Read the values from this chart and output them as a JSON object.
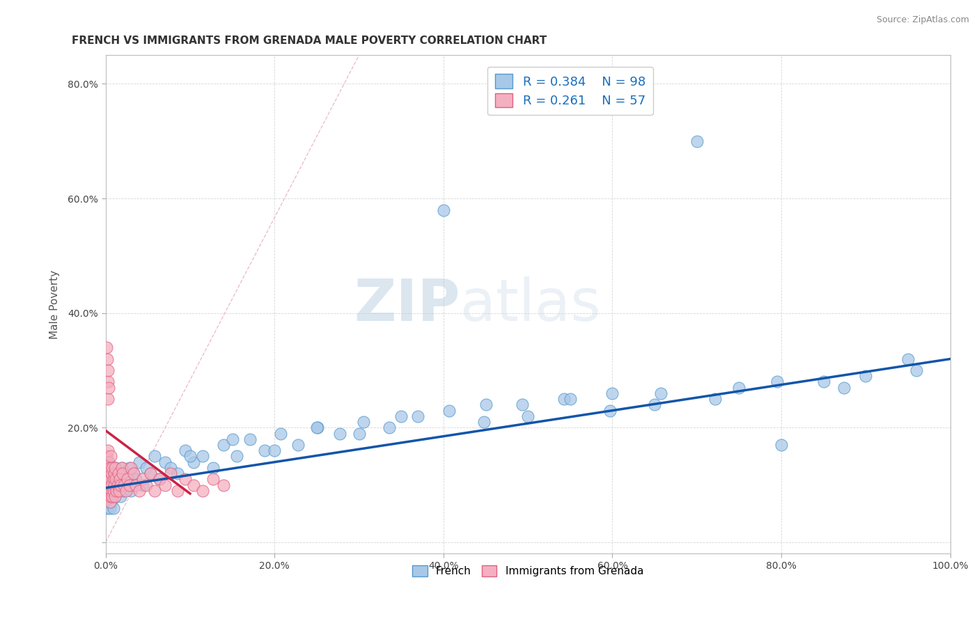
{
  "title": "FRENCH VS IMMIGRANTS FROM GRENADA MALE POVERTY CORRELATION CHART",
  "source": "Source: ZipAtlas.com",
  "ylabel": "Male Poverty",
  "xlim": [
    0,
    1.0
  ],
  "ylim": [
    -0.02,
    0.85
  ],
  "xticks": [
    0.0,
    0.2,
    0.4,
    0.6,
    0.8,
    1.0
  ],
  "xtick_labels": [
    "0.0%",
    "20.0%",
    "40.0%",
    "60.0%",
    "80.0%",
    "100.0%"
  ],
  "yticks": [
    0.0,
    0.2,
    0.4,
    0.6,
    0.8
  ],
  "ytick_labels": [
    "",
    "20.0%",
    "40.0%",
    "60.0%",
    "80.0%"
  ],
  "french_color": "#a8c8e8",
  "grenada_color": "#f4afc0",
  "french_edge": "#5599cc",
  "grenada_edge": "#e06080",
  "regression_french_color": "#1155aa",
  "regression_grenada_color": "#cc2244",
  "diagonal_color": "#e8b0b8",
  "legend_french_r": "R = 0.384",
  "legend_french_n": "N = 98",
  "legend_grenada_r": "R = 0.261",
  "legend_grenada_n": "N = 57",
  "watermark_zip": "ZIP",
  "watermark_atlas": "atlas",
  "title_fontsize": 11,
  "axis_label_fontsize": 11,
  "tick_fontsize": 10,
  "legend_fontsize": 13,
  "french_x": [
    0.001,
    0.001,
    0.002,
    0.002,
    0.003,
    0.003,
    0.003,
    0.004,
    0.004,
    0.004,
    0.005,
    0.005,
    0.005,
    0.006,
    0.006,
    0.006,
    0.007,
    0.007,
    0.007,
    0.008,
    0.008,
    0.008,
    0.009,
    0.009,
    0.009,
    0.01,
    0.01,
    0.011,
    0.011,
    0.012,
    0.012,
    0.013,
    0.014,
    0.015,
    0.016,
    0.017,
    0.018,
    0.019,
    0.02,
    0.022,
    0.024,
    0.026,
    0.028,
    0.03,
    0.033,
    0.036,
    0.04,
    0.044,
    0.048,
    0.053,
    0.058,
    0.064,
    0.07,
    0.077,
    0.085,
    0.094,
    0.104,
    0.115,
    0.127,
    0.14,
    0.155,
    0.171,
    0.188,
    0.207,
    0.228,
    0.251,
    0.277,
    0.305,
    0.336,
    0.37,
    0.407,
    0.448,
    0.493,
    0.543,
    0.597,
    0.657,
    0.722,
    0.795,
    0.874,
    0.96,
    0.1,
    0.15,
    0.2,
    0.25,
    0.3,
    0.35,
    0.4,
    0.45,
    0.5,
    0.55,
    0.6,
    0.65,
    0.7,
    0.75,
    0.8,
    0.85,
    0.9,
    0.95
  ],
  "french_y": [
    0.08,
    0.12,
    0.1,
    0.06,
    0.09,
    0.13,
    0.07,
    0.11,
    0.08,
    0.14,
    0.09,
    0.12,
    0.06,
    0.1,
    0.08,
    0.13,
    0.07,
    0.11,
    0.09,
    0.1,
    0.12,
    0.08,
    0.09,
    0.13,
    0.06,
    0.1,
    0.12,
    0.08,
    0.11,
    0.09,
    0.13,
    0.1,
    0.12,
    0.09,
    0.11,
    0.1,
    0.08,
    0.13,
    0.12,
    0.09,
    0.11,
    0.1,
    0.13,
    0.09,
    0.12,
    0.11,
    0.14,
    0.1,
    0.13,
    0.12,
    0.15,
    0.11,
    0.14,
    0.13,
    0.12,
    0.16,
    0.14,
    0.15,
    0.13,
    0.17,
    0.15,
    0.18,
    0.16,
    0.19,
    0.17,
    0.2,
    0.19,
    0.21,
    0.2,
    0.22,
    0.23,
    0.21,
    0.24,
    0.25,
    0.23,
    0.26,
    0.25,
    0.28,
    0.27,
    0.3,
    0.15,
    0.18,
    0.16,
    0.2,
    0.19,
    0.22,
    0.58,
    0.24,
    0.22,
    0.25,
    0.26,
    0.24,
    0.7,
    0.27,
    0.17,
    0.28,
    0.29,
    0.32
  ],
  "grenada_x": [
    0.001,
    0.001,
    0.002,
    0.002,
    0.003,
    0.003,
    0.003,
    0.004,
    0.004,
    0.004,
    0.005,
    0.005,
    0.005,
    0.006,
    0.006,
    0.006,
    0.007,
    0.007,
    0.007,
    0.008,
    0.008,
    0.009,
    0.009,
    0.01,
    0.01,
    0.011,
    0.011,
    0.012,
    0.013,
    0.014,
    0.015,
    0.016,
    0.017,
    0.018,
    0.019,
    0.02,
    0.022,
    0.024,
    0.026,
    0.028,
    0.03,
    0.033,
    0.036,
    0.04,
    0.044,
    0.048,
    0.053,
    0.058,
    0.064,
    0.07,
    0.077,
    0.085,
    0.094,
    0.104,
    0.115,
    0.127,
    0.14
  ],
  "grenada_y": [
    0.12,
    0.15,
    0.1,
    0.13,
    0.08,
    0.16,
    0.11,
    0.09,
    0.14,
    0.12,
    0.07,
    0.1,
    0.13,
    0.08,
    0.11,
    0.15,
    0.09,
    0.12,
    0.1,
    0.13,
    0.08,
    0.11,
    0.09,
    0.12,
    0.1,
    0.13,
    0.08,
    0.11,
    0.09,
    0.1,
    0.12,
    0.09,
    0.11,
    0.1,
    0.13,
    0.12,
    0.1,
    0.09,
    0.11,
    0.1,
    0.13,
    0.12,
    0.1,
    0.09,
    0.11,
    0.1,
    0.12,
    0.09,
    0.11,
    0.1,
    0.12,
    0.09,
    0.11,
    0.1,
    0.09,
    0.11,
    0.1
  ],
  "grenada_outliers_x": [
    0.001,
    0.002,
    0.003,
    0.003,
    0.003,
    0.004
  ],
  "grenada_outliers_y": [
    0.34,
    0.32,
    0.28,
    0.3,
    0.25,
    0.27
  ]
}
